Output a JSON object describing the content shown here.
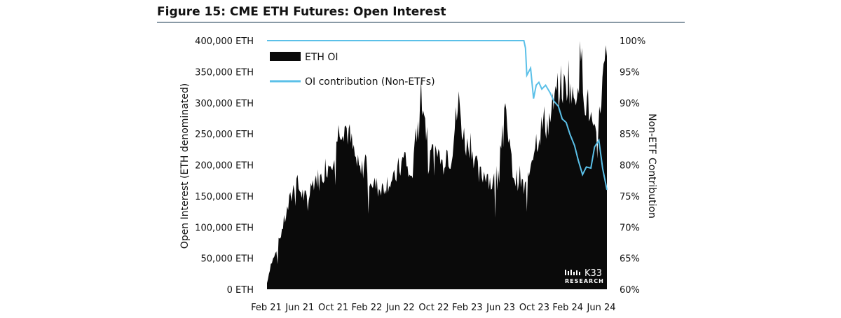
{
  "title": "Figure 15: CME ETH Futures: Open Interest",
  "watermark": {
    "brand": "K33",
    "sub": "RESEARCH"
  },
  "colors": {
    "oi_fill": "#0a0a0a",
    "contribution_line": "#5bc0e8",
    "title_rule": "#8a9aa6"
  },
  "chart_data": {
    "type": "area",
    "title": "Figure 15: CME ETH Futures: Open Interest",
    "x_labels": [
      "Feb 21",
      "Jun 21",
      "Oct 21",
      "Feb 22",
      "Jun 22",
      "Oct 22",
      "Feb 23",
      "Jun 23",
      "Oct 23",
      "Feb 24",
      "Jun 24"
    ],
    "x_range": [
      "2021-02-08",
      "2024-07-31"
    ],
    "ylabel_left": "Open Interest (ETH denominated)",
    "ylabel_right": "Non-ETF Contribution",
    "ylim_left": [
      0,
      400000
    ],
    "ylim_right": [
      60,
      100
    ],
    "y_ticks_left": [
      "0 ETH",
      "50,000 ETH",
      "100,000 ETH",
      "150,000 ETH",
      "200,000 ETH",
      "250,000 ETH",
      "300,000 ETH",
      "350,000 ETH",
      "400,000 ETH"
    ],
    "y_ticks_right": [
      "60%",
      "65%",
      "70%",
      "75%",
      "80%",
      "85%",
      "90%",
      "95%",
      "100%"
    ],
    "legend": {
      "placement": "top-left",
      "entries": [
        "ETH OI",
        "OI contribution (Non-ETFs)"
      ]
    },
    "grid": false,
    "series": [
      {
        "name": "ETH OI",
        "type": "area",
        "axis": "left",
        "x": [
          "2021-02-08",
          "2021-02-22",
          "2021-03-15",
          "2021-04-01",
          "2021-04-20",
          "2021-05-10",
          "2021-05-25",
          "2021-06-10",
          "2021-06-25",
          "2021-07-10",
          "2021-07-25",
          "2021-08-10",
          "2021-08-25",
          "2021-09-10",
          "2021-09-25",
          "2021-10-10",
          "2021-10-25",
          "2021-11-10",
          "2021-11-25",
          "2021-12-10",
          "2021-12-25",
          "2022-01-10",
          "2022-01-25",
          "2022-02-10",
          "2022-02-25",
          "2022-03-10",
          "2022-03-25",
          "2022-04-10",
          "2022-04-25",
          "2022-05-10",
          "2022-05-25",
          "2022-06-10",
          "2022-06-25",
          "2022-07-10",
          "2022-07-25",
          "2022-08-10",
          "2022-08-25",
          "2022-09-10",
          "2022-09-25",
          "2022-10-10",
          "2022-10-25",
          "2022-11-10",
          "2022-11-25",
          "2022-12-10",
          "2022-12-25",
          "2023-01-10",
          "2023-01-25",
          "2023-02-10",
          "2023-02-25",
          "2023-03-10",
          "2023-03-25",
          "2023-04-10",
          "2023-04-25",
          "2023-05-10",
          "2023-05-25",
          "2023-06-10",
          "2023-06-25",
          "2023-07-10",
          "2023-07-25",
          "2023-08-10",
          "2023-08-25",
          "2023-09-10",
          "2023-09-25",
          "2023-10-10",
          "2023-10-25",
          "2023-11-10",
          "2023-11-25",
          "2023-12-10",
          "2023-12-25",
          "2024-01-10",
          "2024-01-25",
          "2024-02-10",
          "2024-02-25",
          "2024-03-10",
          "2024-03-25",
          "2024-04-10",
          "2024-04-25",
          "2024-05-10",
          "2024-05-25",
          "2024-06-10",
          "2024-06-25",
          "2024-07-10",
          "2024-07-31"
        ],
        "values": [
          10000,
          40000,
          60000,
          90000,
          120000,
          150000,
          175000,
          160000,
          150000,
          140000,
          170000,
          180000,
          175000,
          195000,
          200000,
          215000,
          240000,
          265000,
          265000,
          250000,
          225000,
          200000,
          185000,
          210000,
          190000,
          170000,
          165000,
          160000,
          170000,
          175000,
          170000,
          190000,
          200000,
          215000,
          175000,
          200000,
          280000,
          330000,
          255000,
          245000,
          205000,
          220000,
          200000,
          225000,
          210000,
          260000,
          300000,
          250000,
          230000,
          240000,
          210000,
          180000,
          185000,
          190000,
          170000,
          175000,
          210000,
          285000,
          260000,
          200000,
          175000,
          180000,
          160000,
          170000,
          220000,
          240000,
          255000,
          270000,
          265000,
          290000,
          310000,
          330000,
          320000,
          345000,
          300000,
          330000,
          375000,
          310000,
          290000,
          250000,
          225000,
          320000,
          375000
        ]
      },
      {
        "name": "OI contribution (Non-ETFs)",
        "type": "line",
        "axis": "right",
        "x": [
          "2021-02-08",
          "2021-06-01",
          "2021-10-01",
          "2022-02-01",
          "2022-06-01",
          "2022-10-01",
          "2023-02-01",
          "2023-06-01",
          "2023-09-25",
          "2023-10-01",
          "2023-10-06",
          "2023-10-20",
          "2023-10-31",
          "2023-11-10",
          "2023-11-20",
          "2023-12-01",
          "2023-12-15",
          "2024-01-01",
          "2024-01-15",
          "2024-02-01",
          "2024-02-15",
          "2024-03-01",
          "2024-03-15",
          "2024-04-01",
          "2024-04-15",
          "2024-05-01",
          "2024-05-15",
          "2024-06-01",
          "2024-06-15",
          "2024-07-01",
          "2024-07-15",
          "2024-07-31"
        ],
        "values": [
          100,
          100,
          100,
          100,
          100,
          100,
          100,
          100,
          100,
          98.5,
          94.5,
          95.5,
          91,
          92.5,
          93.5,
          92,
          92.8,
          92,
          90,
          89,
          87.5,
          86.5,
          85,
          83,
          81,
          78.5,
          80,
          79.5,
          83,
          84,
          79,
          76
        ]
      }
    ]
  }
}
